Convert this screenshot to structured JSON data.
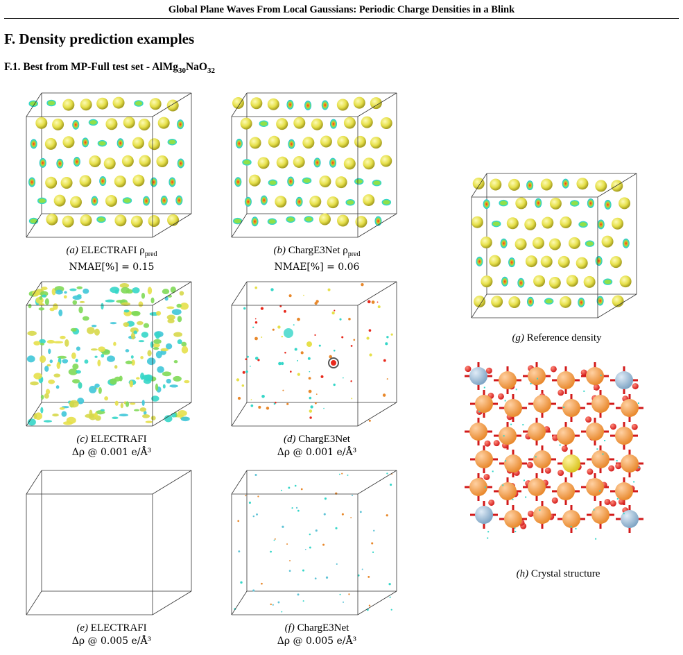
{
  "header": {
    "title": "Global Plane Waves From Local Gaussians: Periodic Charge Densities in a Blink"
  },
  "section": {
    "title": "F. Density prediction examples"
  },
  "subsection": {
    "prefix": "F.1. Best from MP-Full test set - AlMg",
    "sub1": "30",
    "mid": "NaO",
    "sub2": "32"
  },
  "panels": {
    "a": {
      "tag": "(a)",
      "line1": "ELECTRAFI ρ",
      "line1_sub": "pred",
      "line2": "NMAE[%] = 0.15"
    },
    "b": {
      "tag": "(b)",
      "line1": "ChargE3Net ρ",
      "line1_sub": "pred",
      "line2": "NMAE[%] = 0.06"
    },
    "c": {
      "tag": "(c)",
      "line1": "ELECTRAFI",
      "line2": "Δρ @ 0.001 e/Å³"
    },
    "d": {
      "tag": "(d)",
      "line1": "ChargE3Net",
      "line2": "Δρ @ 0.001 e/Å³"
    },
    "e": {
      "tag": "(e)",
      "line1": "ELECTRAFI",
      "line2": "Δρ @ 0.005 e/Å³"
    },
    "f": {
      "tag": "(f)",
      "line1": "ChargE3Net",
      "line2": "Δρ @ 0.005 e/Å³"
    },
    "g": {
      "tag": "(g)",
      "line1": "Reference density"
    },
    "h": {
      "tag": "(h)",
      "line1": "Crystal structure"
    }
  },
  "colors": {
    "sphere": "#e6e04a",
    "cyan": "#35d6c8",
    "red": "#e8291c",
    "orange": "#e8882b",
    "blue_atom": "#7ea4c4",
    "oxygen": "#d21a1a"
  }
}
